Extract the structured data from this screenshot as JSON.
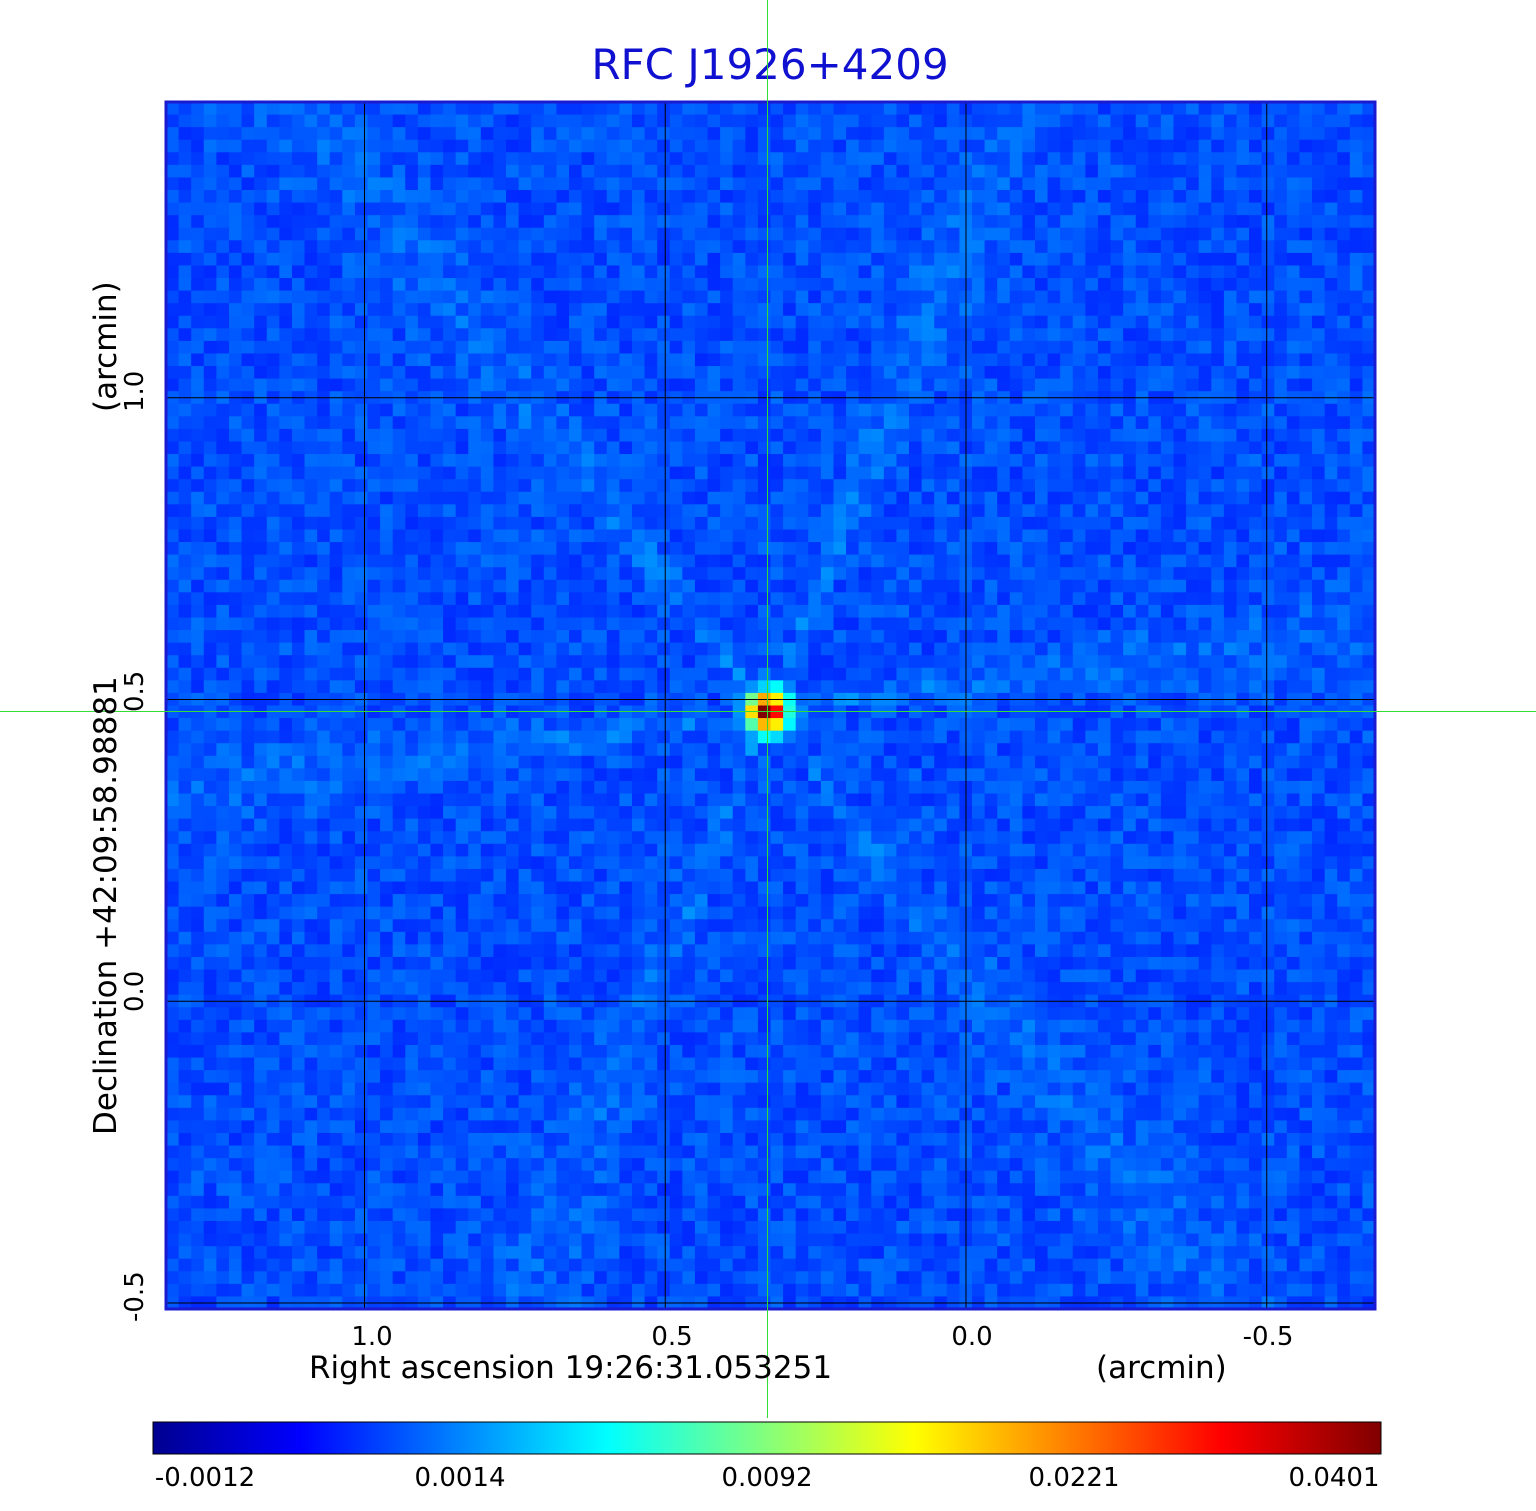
{
  "chart_data": {
    "type": "heatmap",
    "title": "RFC J1926+4209",
    "xlabel": "Right ascension  19:26:31.053251",
    "xlabel_unit": "(arcmin)",
    "ylabel": "Declination  +42:09:58.98881",
    "ylabel_unit": "(arcmin)",
    "x_ticks": [
      "1.0",
      "0.5",
      "0.0",
      "-0.5"
    ],
    "y_ticks": [
      "1.0",
      "0.5",
      "0.0",
      "-0.5"
    ],
    "xlim": [
      1.33,
      -0.68
    ],
    "ylim": [
      -0.51,
      1.49
    ],
    "grid": true,
    "colormap": "jet",
    "colorbar_ticks": [
      "-0.0012",
      "0.0014",
      "0.0092",
      "0.0221",
      "0.0401"
    ],
    "peak": {
      "x_arcmin": 0.33,
      "y_arcmin": 0.48
    },
    "crosshair": {
      "x_arcmin": 0.33,
      "y_arcmin": 0.48
    }
  },
  "colors": {
    "title": "#1010d0",
    "frame": "#1a1ad0",
    "crosshair": "#33dd33",
    "grid": "#000000"
  }
}
